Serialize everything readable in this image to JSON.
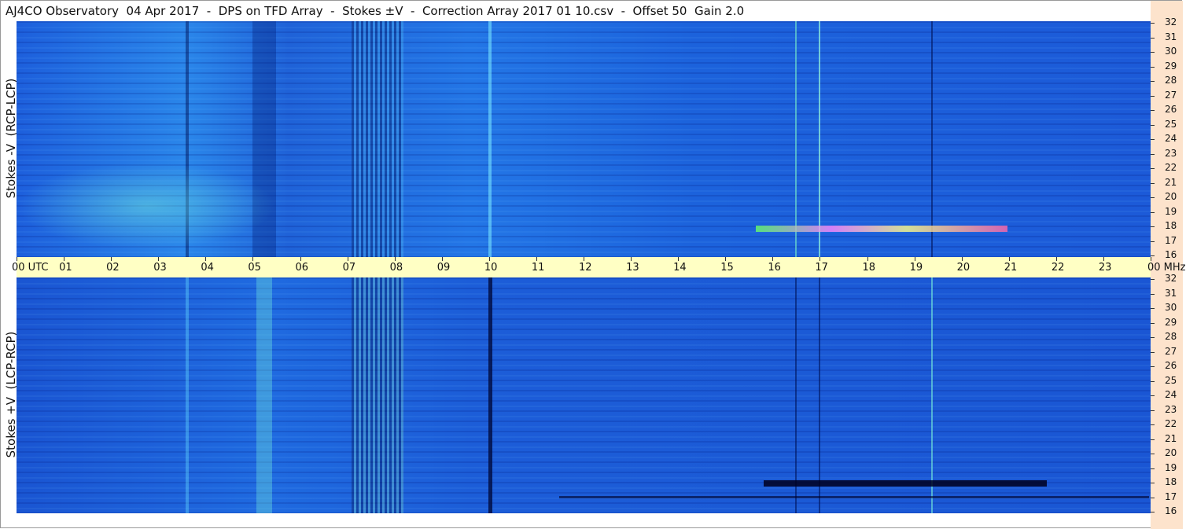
{
  "header": {
    "title": "AJ4CO Observatory  04 Apr 2017  -  DPS on TFD Array  -  Stokes ±V  -  Correction Array 2017 01 10.csv  -  Offset 50  Gain 2.0"
  },
  "panels": [
    {
      "label": "Stokes -V  (RCP-LCP)",
      "freq_ticks": [
        32,
        31,
        30,
        29,
        28,
        27,
        26,
        25,
        24,
        23,
        22,
        21,
        20,
        19,
        18,
        17,
        16
      ]
    },
    {
      "label": "Stokes +V  (LCP-RCP)",
      "freq_ticks": [
        32,
        31,
        30,
        29,
        28,
        27,
        26,
        25,
        24,
        23,
        22,
        21,
        20,
        19,
        18,
        17,
        16
      ]
    }
  ],
  "time_axis": {
    "labels": [
      "00 UTC",
      "01",
      "02",
      "03",
      "04",
      "05",
      "06",
      "07",
      "08",
      "09",
      "10",
      "11",
      "12",
      "13",
      "14",
      "15",
      "16",
      "17",
      "18",
      "19",
      "20",
      "21",
      "22",
      "23",
      "00 MHz"
    ]
  }
}
